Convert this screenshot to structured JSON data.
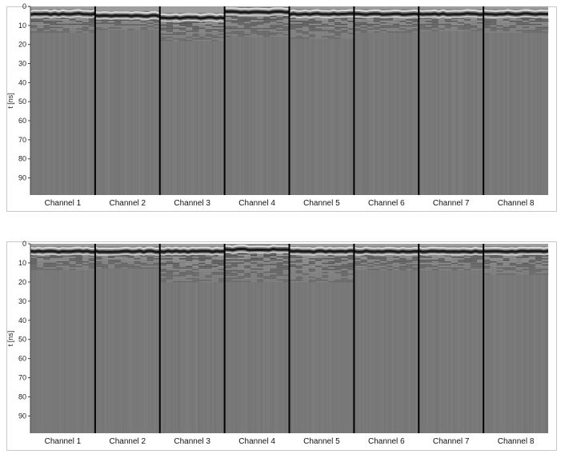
{
  "chart_data": [
    {
      "type": "heatmap",
      "colormap": "grayscale",
      "ylabel": "t [ns]",
      "ylim": [
        0,
        99
      ],
      "y_reversed": true,
      "y_ticks": [
        0,
        10,
        20,
        30,
        40,
        50,
        60,
        70,
        80,
        90
      ],
      "categories": [
        "Channel 1",
        "Channel 2",
        "Channel 3",
        "Channel 4",
        "Channel 5",
        "Channel 6",
        "Channel 7",
        "Channel 8"
      ],
      "background_color": "#7d7d7d",
      "first_arrival_ns": [
        4,
        5,
        6,
        3,
        4,
        4,
        4,
        4
      ],
      "reflection_zone_end_ns": [
        14,
        12,
        18,
        16,
        17,
        14,
        13,
        14
      ]
    },
    {
      "type": "heatmap",
      "colormap": "grayscale",
      "ylabel": "t [ns]",
      "ylim": [
        0,
        99
      ],
      "y_reversed": true,
      "y_ticks": [
        0,
        10,
        20,
        30,
        40,
        50,
        60,
        70,
        80,
        90
      ],
      "categories": [
        "Channel 1",
        "Channel 2",
        "Channel 3",
        "Channel 4",
        "Channel 5",
        "Channel 6",
        "Channel 7",
        "Channel 8"
      ],
      "background_color": "#7d7d7d",
      "first_arrival_ns": [
        4,
        4,
        4,
        3,
        4,
        4,
        4,
        4
      ],
      "reflection_zone_end_ns": [
        14,
        13,
        20,
        20,
        20,
        14,
        14,
        16
      ]
    }
  ]
}
